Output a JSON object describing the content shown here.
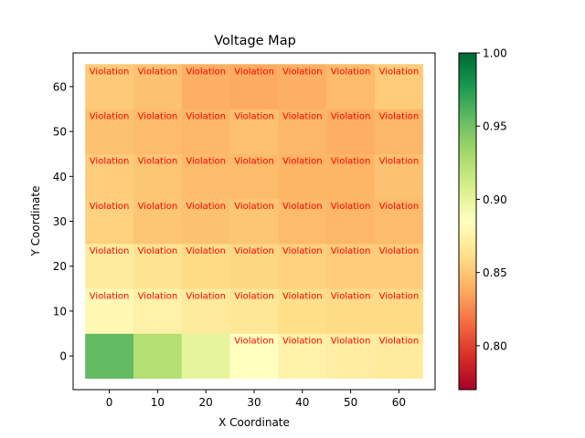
{
  "chart_data": {
    "type": "heatmap",
    "title": "Voltage Map",
    "xlabel": "X Coordinate",
    "ylabel": "Y Coordinate",
    "x": [
      0,
      10,
      20,
      30,
      40,
      50,
      60
    ],
    "y": [
      0,
      10,
      20,
      30,
      40,
      50,
      60
    ],
    "xlim": [
      -7.5,
      67.5
    ],
    "ylim": [
      -7.5,
      67.5
    ],
    "xticks": [
      "0",
      "10",
      "20",
      "30",
      "40",
      "50",
      "60"
    ],
    "yticks": [
      "0",
      "10",
      "20",
      "30",
      "40",
      "50",
      "60"
    ],
    "cell_size": 10,
    "values": [
      [
        0.955,
        0.925,
        0.9,
        0.885,
        0.875,
        0.872,
        0.87
      ],
      [
        0.88,
        0.875,
        0.87,
        0.867,
        0.862,
        0.86,
        0.86
      ],
      [
        0.87,
        0.865,
        0.86,
        0.858,
        0.855,
        0.853,
        0.853
      ],
      [
        0.855,
        0.85,
        0.848,
        0.85,
        0.845,
        0.843,
        0.845
      ],
      [
        0.853,
        0.85,
        0.845,
        0.845,
        0.842,
        0.842,
        0.848
      ],
      [
        0.848,
        0.845,
        0.843,
        0.847,
        0.843,
        0.84,
        0.843
      ],
      [
        0.852,
        0.848,
        0.84,
        0.838,
        0.84,
        0.845,
        0.853
      ]
    ],
    "annotation_text": "Violation",
    "annotation_color": "#ff0000",
    "violation_threshold": 0.89,
    "colormap": "RdYlGn",
    "vmin": 0.77,
    "vmax": 1.0,
    "colorbar_ticks": [
      "0.80",
      "0.85",
      "0.90",
      "0.95",
      "1.00"
    ],
    "colorbar_tick_values": [
      0.8,
      0.85,
      0.9,
      0.95,
      1.0
    ],
    "grid": false
  }
}
